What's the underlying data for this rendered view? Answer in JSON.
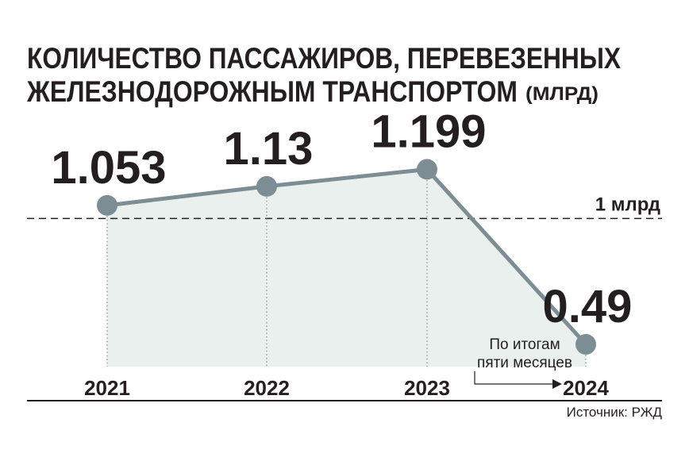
{
  "chart_data": {
    "type": "line",
    "title": [
      "КОЛИЧЕСТВО ПАССАЖИРОВ, ПЕРЕВЕЗЕННЫХ",
      "ЖЕЛЕЗНОДОРОЖНЫМ ТРАНСПОРТОМ"
    ],
    "unit": "(МЛРД)",
    "categories": [
      "2021",
      "2022",
      "2023",
      "2024"
    ],
    "values": [
      1.053,
      1.13,
      1.199,
      0.49
    ],
    "color": "#7d8d94",
    "fill": "#e9f0ee",
    "ylim": [
      0.4,
      1.3
    ],
    "reference": {
      "value": 1,
      "label": "1 млрд"
    },
    "note": [
      "По итогам",
      "пяти месяцев"
    ],
    "source": "Источник: РЖД"
  }
}
